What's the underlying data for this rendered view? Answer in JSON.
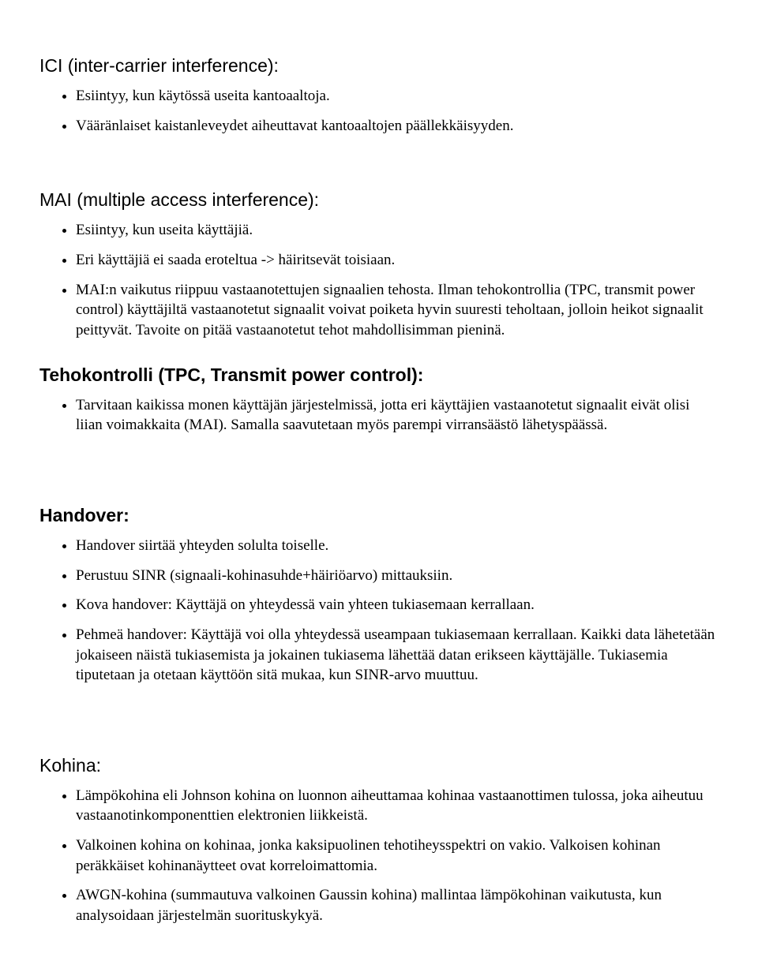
{
  "sections": {
    "ici": {
      "title": "ICI (inter-carrier interference):",
      "items": [
        "Esiintyy, kun käytössä useita kantoaaltoja.",
        "Vääränlaiset kaistanleveydet aiheuttavat kantoaaltojen päällekkäisyyden."
      ]
    },
    "mai": {
      "title": "MAI (multiple access interference):",
      "items": [
        "Esiintyy, kun useita käyttäjiä.",
        "Eri käyttäjiä ei saada eroteltua -> häiritsevät toisiaan.",
        "MAI:n vaikutus riippuu vastaanotettujen signaalien tehosta. Ilman tehokontrollia (TPC, transmit power control) käyttäjiltä vastaanotetut signaalit voivat poiketa hyvin suuresti teholtaan, jolloin heikot signaalit peittyvät. Tavoite on pitää vastaanotetut tehot mahdollisimman pieninä."
      ]
    },
    "tpc": {
      "title": "Tehokontrolli (TPC, Transmit power control):",
      "items": [
        "Tarvitaan kaikissa monen käyttäjän järjestelmissä, jotta eri käyttäjien vastaanotetut signaalit eivät olisi liian voimakkaita (MAI). Samalla saavutetaan myös parempi virransäästö lähetyspäässä."
      ]
    },
    "handover": {
      "title": "Handover:",
      "items": [
        "Handover siirtää yhteyden solulta toiselle.",
        "Perustuu SINR (signaali-kohinasuhde+häiriöarvo) mittauksiin.",
        "Kova handover: Käyttäjä on yhteydessä vain yhteen tukiasemaan kerrallaan.",
        "Pehmeä handover: Käyttäjä voi olla yhteydessä useampaan tukiasemaan kerrallaan. Kaikki data lähetetään jokaiseen näistä tukiasemista ja jokainen tukiasema lähettää datan erikseen käyttäjälle. Tukiasemia tiputetaan ja otetaan käyttöön sitä mukaa, kun SINR-arvo muuttuu."
      ]
    },
    "kohina": {
      "title": "Kohina:",
      "items": [
        "Lämpökohina eli Johnson kohina on luonnon aiheuttamaa kohinaa vastaanottimen tulossa, joka aiheutuu vastaanotinkomponenttien elektronien liikkeistä.",
        "Valkoinen kohina on kohinaa, jonka kaksipuolinen tehotiheysspektri on vakio. Valkoisen kohinan peräkkäiset kohinanäytteet ovat korreloimattomia.",
        "AWGN-kohina (summautuva valkoinen Gaussin kohina) mallintaa lämpökohinan vaikutusta, kun analysoidaan järjestelmän suorituskykyä."
      ]
    }
  }
}
